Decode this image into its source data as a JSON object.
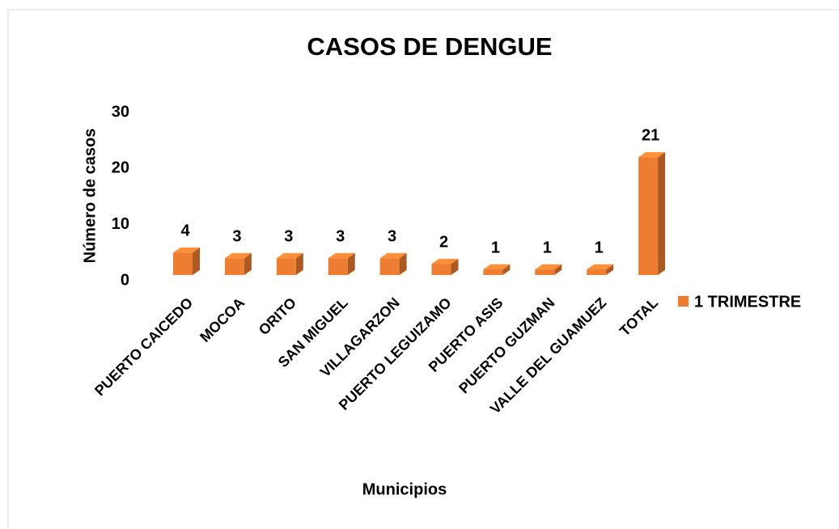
{
  "chart_data": {
    "type": "bar3d",
    "title": "CASOS DE DENGUE",
    "categories": [
      "PUERTO CAICEDO",
      "MOCOA",
      "ORITO",
      "SAN MIGUEL",
      "VILLAGARZON",
      "PUERTO LEGUIZAMO",
      "PUERTO ASIS",
      "PUERTO GUZMAN",
      "VALLE DEL GUAMUEZ",
      "TOTAL"
    ],
    "series": [
      {
        "name": "1 TRIMESTRE",
        "color": "#ed7d31",
        "values": [
          4,
          3,
          3,
          3,
          3,
          2,
          1,
          1,
          1,
          21
        ]
      }
    ],
    "ylim": [
      0,
      30
    ],
    "yticks": [
      0,
      10,
      20,
      30
    ],
    "x_label": "Municipios",
    "y_label": "Número de casos",
    "grid": false,
    "legend": "right"
  }
}
